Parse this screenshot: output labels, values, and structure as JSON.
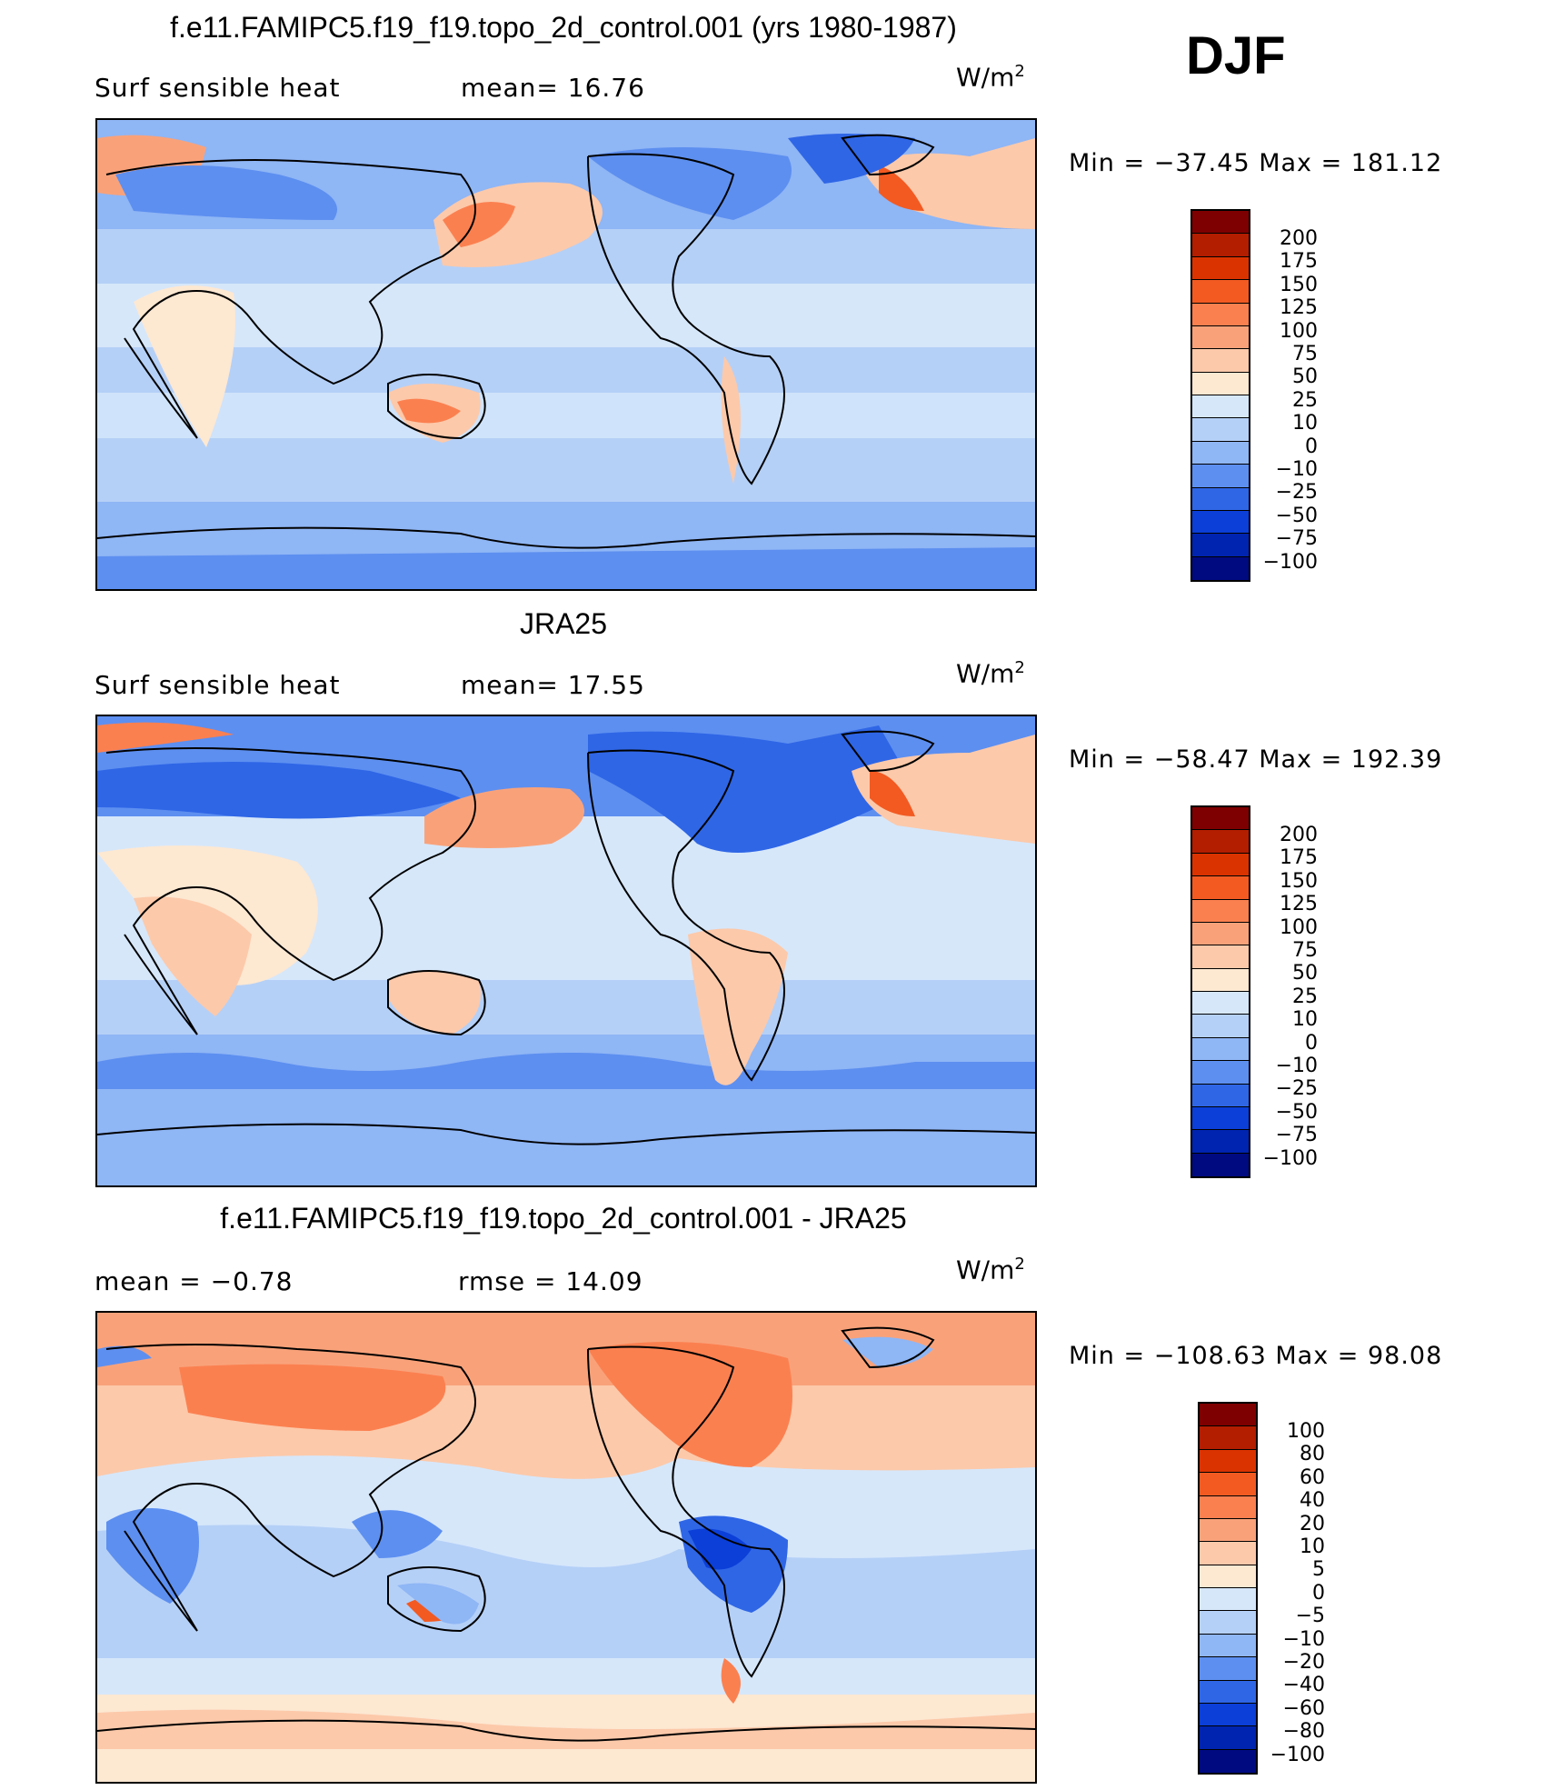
{
  "season": "DJF",
  "panels": [
    {
      "title": "f.e11.FAMIPC5.f19_f19.topo_2d_control.001 (yrs 1980-1987)",
      "left_label": "Surf  sensible  heat",
      "center_label": "mean=   16.76",
      "units": "W/m",
      "units_sup": "2",
      "minmax": "Min  =  −37.45  Max  =  181.12",
      "colorbar": {
        "labels": [
          "200",
          "175",
          "150",
          "125",
          "100",
          "75",
          "50",
          "25",
          "10",
          "0",
          "−10",
          "−25",
          "−50",
          "−75",
          "−100"
        ],
        "colors": [
          "#7f0000",
          "#b31d00",
          "#db3300",
          "#f25a22",
          "#fb8050",
          "#f9a27a",
          "#fcc9aa",
          "#fde8d2",
          "#d6e7fa",
          "#b5d0f7",
          "#8fb6f5",
          "#5d8ff0",
          "#2f66e6",
          "#0b3fd8",
          "#0024b0",
          "#000a80"
        ]
      }
    },
    {
      "title": "JRA25",
      "left_label": "Surf  sensible  heat",
      "center_label": "mean=   17.55",
      "units": "W/m",
      "units_sup": "2",
      "minmax": "Min  =  −58.47  Max  =  192.39",
      "colorbar": {
        "labels": [
          "200",
          "175",
          "150",
          "125",
          "100",
          "75",
          "50",
          "25",
          "10",
          "0",
          "−10",
          "−25",
          "−50",
          "−75",
          "−100"
        ],
        "colors": [
          "#7f0000",
          "#b31d00",
          "#db3300",
          "#f25a22",
          "#fb8050",
          "#f9a27a",
          "#fcc9aa",
          "#fde8d2",
          "#d6e7fa",
          "#b5d0f7",
          "#8fb6f5",
          "#5d8ff0",
          "#2f66e6",
          "#0b3fd8",
          "#0024b0",
          "#000a80"
        ]
      }
    },
    {
      "title": "f.e11.FAMIPC5.f19_f19.topo_2d_control.001 - JRA25",
      "left_label": "mean  =    −0.78",
      "center_label": "rmse  =    14.09",
      "units": "W/m",
      "units_sup": "2",
      "minmax": "Min  =  −108.63  Max  =    98.08",
      "colorbar": {
        "labels": [
          "100",
          "80",
          "60",
          "40",
          "20",
          "10",
          "5",
          "0",
          "−5",
          "−10",
          "−20",
          "−40",
          "−60",
          "−80",
          "−100"
        ],
        "colors": [
          "#7f0000",
          "#b31d00",
          "#db3300",
          "#f25a22",
          "#fb8050",
          "#f9a27a",
          "#fcc9aa",
          "#fde8d2",
          "#d6e7fa",
          "#b5d0f7",
          "#8fb6f5",
          "#5d8ff0",
          "#2f66e6",
          "#0b3fd8",
          "#0024b0",
          "#000a80"
        ]
      }
    }
  ],
  "map_colors": {
    "ocean_light": "#d6e7fa",
    "ocean_mid": "#b5d0f7",
    "blue_mid": "#8fb6f5",
    "blue_strong": "#5d8ff0",
    "blue_deep": "#2f66e6",
    "warm_light": "#fde8d2",
    "warm_mid": "#fcc9aa",
    "warm_strong": "#f9a27a",
    "orange": "#fb8050",
    "red": "#f25a22"
  }
}
